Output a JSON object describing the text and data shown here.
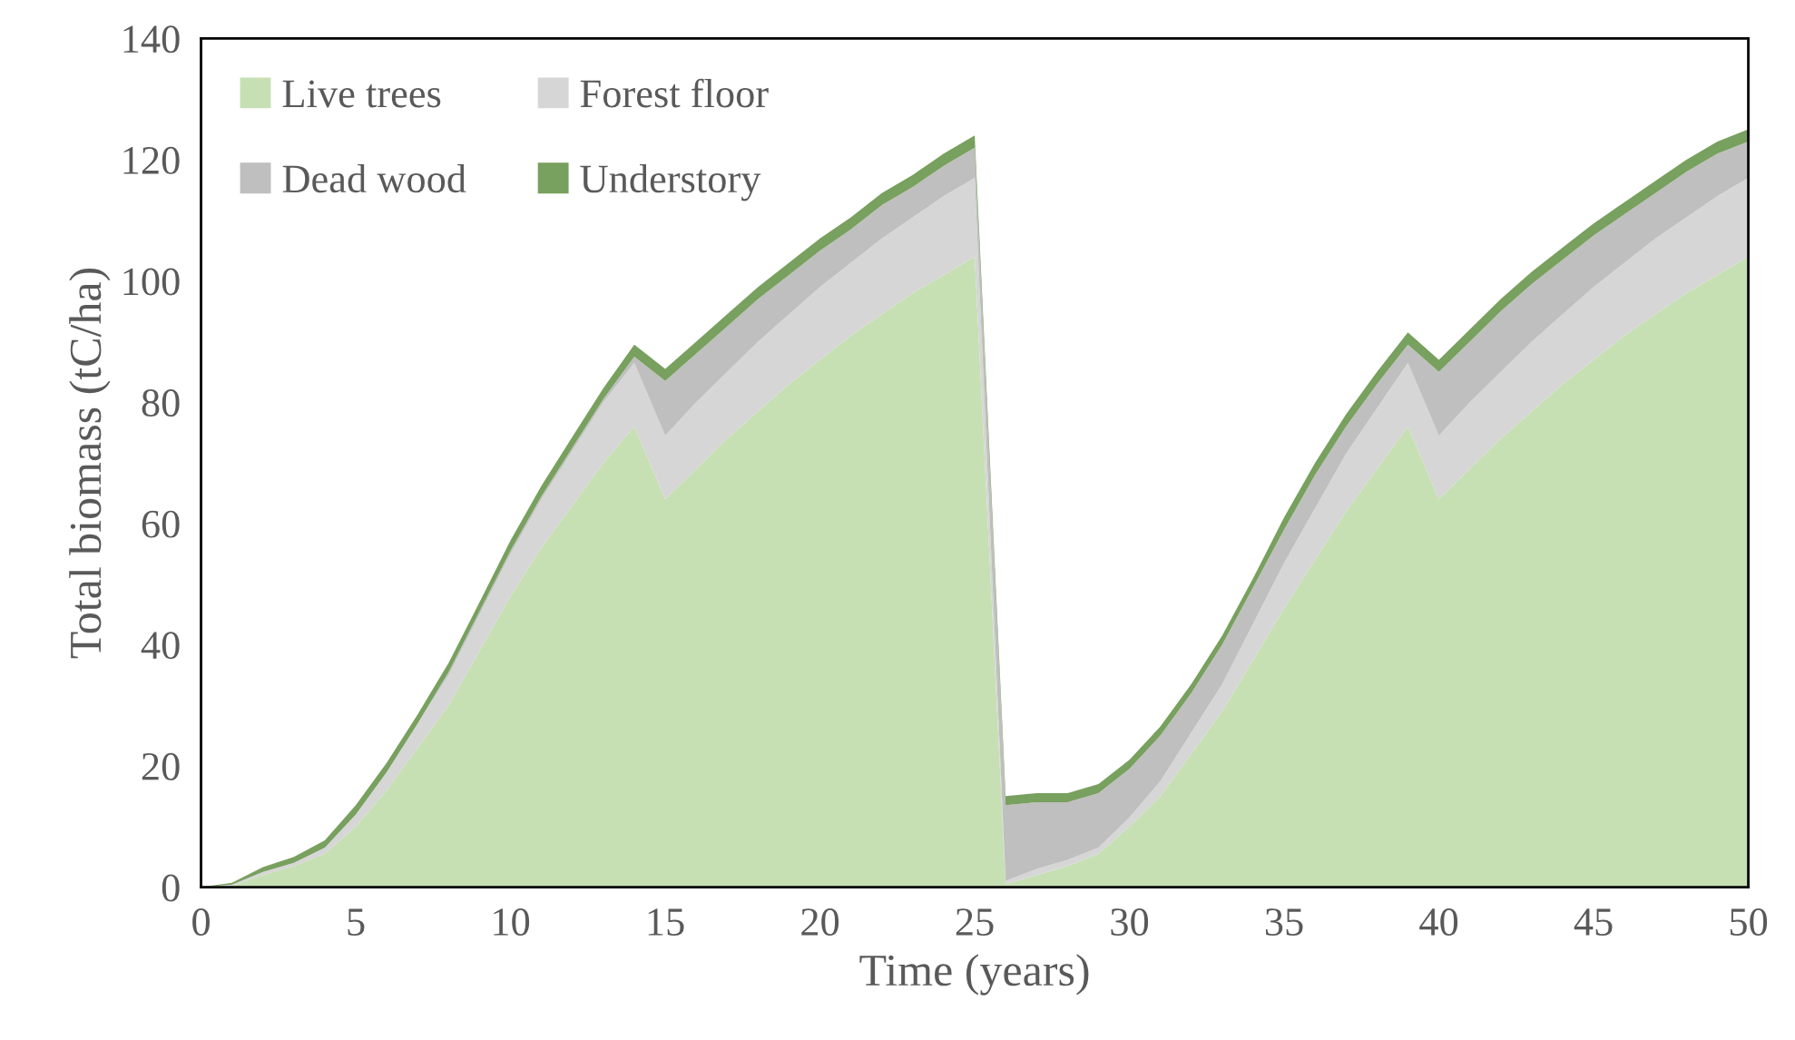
{
  "chart_data": {
    "type": "area",
    "stacked": true,
    "xlabel": "Time (years)",
    "ylabel": "Total biomass (tC/ha)",
    "x": [
      0,
      1,
      2,
      3,
      4,
      5,
      6,
      7,
      8,
      9,
      10,
      11,
      12,
      13,
      14,
      15,
      16,
      17,
      18,
      19,
      20,
      21,
      22,
      23,
      24,
      25,
      26,
      27,
      28,
      29,
      30,
      31,
      32,
      33,
      34,
      35,
      36,
      37,
      38,
      39,
      40,
      41,
      42,
      43,
      44,
      45,
      46,
      47,
      48,
      49,
      50
    ],
    "series": [
      {
        "name": "Live trees",
        "color": "#c6e0b4",
        "values": [
          0,
          0.2,
          2,
          3.5,
          5.5,
          10,
          16,
          23,
          30,
          39,
          48,
          56,
          63,
          70,
          76,
          64,
          69,
          74,
          78.5,
          83,
          87,
          91,
          94.5,
          98,
          101,
          104,
          0.5,
          2,
          3.5,
          5.5,
          10,
          15,
          22,
          29,
          37.5,
          46,
          54,
          62,
          69,
          76,
          64,
          69,
          74,
          78.5,
          83,
          87,
          91,
          94.5,
          98,
          101,
          104
        ]
      },
      {
        "name": "Forest floor",
        "color": "#d6d6d6",
        "values": [
          0,
          0.2,
          0.5,
          0.5,
          1,
          2,
          3,
          4,
          5,
          6,
          7,
          8,
          9,
          10,
          10.5,
          10.5,
          11,
          11,
          11.5,
          11.5,
          12,
          12,
          12.5,
          12.5,
          13,
          13,
          0.5,
          1,
          1,
          1,
          1.5,
          2.5,
          3.5,
          4.5,
          6,
          7.5,
          8.5,
          9.5,
          10,
          10.5,
          10.5,
          11,
          11,
          11.5,
          11.5,
          12,
          12,
          12.5,
          12.5,
          13,
          13
        ]
      },
      {
        "name": "Dead wood",
        "color": "#bfbfbf",
        "values": [
          0,
          0,
          0,
          0,
          0,
          0,
          0,
          0,
          0.5,
          0.5,
          0.5,
          0.5,
          0.5,
          0.5,
          1,
          9,
          8,
          7.5,
          7,
          6.5,
          6,
          5.5,
          5.5,
          5,
          5,
          5,
          12.5,
          11,
          9.5,
          9,
          8,
          7.5,
          6.5,
          6.5,
          6,
          5.5,
          5.5,
          4.5,
          4,
          3,
          10.5,
          10,
          10,
          9.5,
          9,
          8.5,
          8,
          7.5,
          7.5,
          7,
          6
        ]
      },
      {
        "name": "Understory",
        "color": "#78a05e",
        "values": [
          0,
          0.3,
          0.8,
          1,
          1.2,
          1.5,
          1.5,
          1.5,
          1.5,
          1.5,
          1.7,
          1.7,
          1.8,
          1.8,
          2,
          2,
          2,
          2,
          2,
          2,
          2,
          2,
          2,
          2,
          2,
          2,
          1.5,
          1.5,
          1.5,
          1.5,
          1.5,
          1.5,
          1.5,
          1.5,
          1.5,
          2,
          2,
          2,
          2,
          2,
          2,
          2,
          2,
          2,
          2,
          2,
          2,
          2,
          2,
          2,
          2
        ]
      }
    ],
    "xlim": [
      0,
      50
    ],
    "xticks": [
      0,
      5,
      10,
      15,
      20,
      25,
      30,
      35,
      40,
      45,
      50
    ],
    "ylim": [
      0,
      140
    ],
    "yticks": [
      0,
      20,
      40,
      60,
      80,
      100,
      120,
      140
    ],
    "grid": false,
    "legend": "top left"
  }
}
